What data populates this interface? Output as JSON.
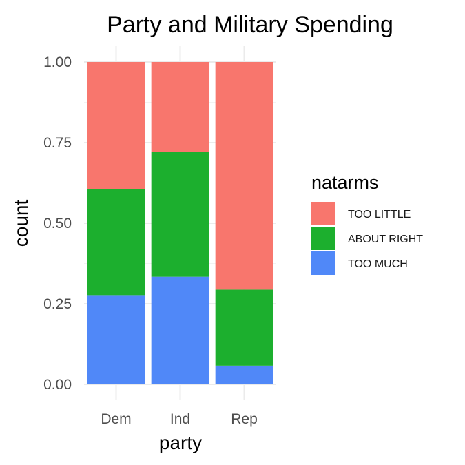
{
  "chart_data": {
    "type": "bar",
    "stacked": true,
    "position": "fill",
    "title": "Party and Military Spending",
    "xlabel": "party",
    "ylabel": "count",
    "categories": [
      "Dem",
      "Ind",
      "Rep"
    ],
    "ylim": [
      0,
      1
    ],
    "yticks": [
      "0.00",
      "0.25",
      "0.50",
      "0.75",
      "1.00"
    ],
    "grid": true,
    "legend": {
      "title": "natarms",
      "placement": "right"
    },
    "series": [
      {
        "name": "TOO LITTLE",
        "color": "#F8766D",
        "values": [
          0.395,
          0.278,
          0.706
        ]
      },
      {
        "name": "ABOUT RIGHT",
        "color": "#1CAF2E",
        "values": [
          0.328,
          0.388,
          0.236
        ]
      },
      {
        "name": "TOO MUCH",
        "color": "#5088F8",
        "values": [
          0.277,
          0.334,
          0.058
        ]
      }
    ]
  }
}
